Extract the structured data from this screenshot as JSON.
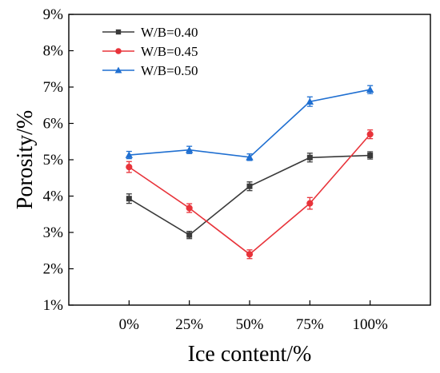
{
  "chart_data": {
    "type": "line",
    "title": "",
    "xlabel": "Ice content/%",
    "ylabel": "Porosity/%",
    "categories": [
      "0%",
      "25%",
      "50%",
      "75%",
      "100%"
    ],
    "ylim": [
      1,
      9
    ],
    "yticks": [
      1,
      2,
      3,
      4,
      5,
      6,
      7,
      8,
      9
    ],
    "ytick_labels": [
      "1%",
      "2%",
      "3%",
      "4%",
      "5%",
      "6%",
      "7%",
      "8%",
      "9%"
    ],
    "grid": false,
    "legend_position": "top-left",
    "series": [
      {
        "name": "W/B=0.40",
        "color": "#3a3a3a",
        "marker": "square",
        "values": [
          3.93,
          2.93,
          4.27,
          5.06,
          5.12
        ],
        "errors": [
          0.13,
          0.1,
          0.12,
          0.12,
          0.1
        ]
      },
      {
        "name": "W/B=0.45",
        "color": "#e8333a",
        "marker": "circle",
        "values": [
          4.8,
          3.67,
          2.4,
          3.8,
          5.7
        ],
        "errors": [
          0.15,
          0.12,
          0.12,
          0.16,
          0.12
        ]
      },
      {
        "name": "W/B=0.50",
        "color": "#1f6fd1",
        "marker": "triangle",
        "values": [
          5.13,
          5.27,
          5.07,
          6.6,
          6.93
        ],
        "errors": [
          0.1,
          0.1,
          0.09,
          0.13,
          0.11
        ]
      }
    ]
  }
}
